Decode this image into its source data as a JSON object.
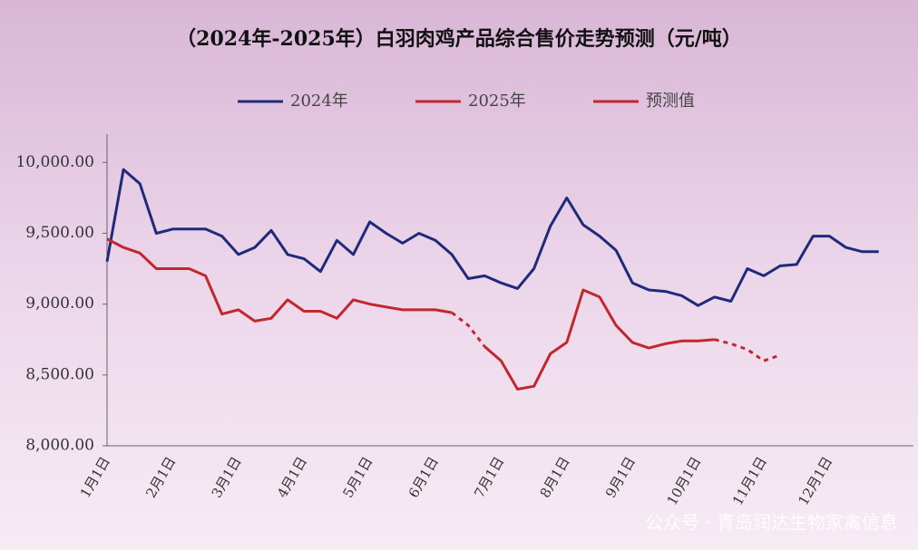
{
  "chart_data": {
    "type": "line",
    "title": "（2024年-2025年）白羽肉鸡产品综合售价走势预测（元/吨）",
    "watermark": "公众号 · 青岛润达生物家禽信息",
    "categories": [
      "1月1日",
      null,
      null,
      null,
      "2月1日",
      null,
      null,
      null,
      "3月1日",
      null,
      null,
      null,
      "4月1日",
      null,
      null,
      null,
      "5月1日",
      null,
      null,
      null,
      "6月1日",
      null,
      null,
      null,
      "7月1日",
      null,
      null,
      null,
      "8月1日",
      null,
      null,
      null,
      "9月1日",
      null,
      null,
      null,
      "10月1日",
      null,
      null,
      null,
      "11月1日",
      null,
      null,
      null,
      "12月1日",
      null,
      null,
      null
    ],
    "series": [
      {
        "name": "2024年",
        "color": "#1f2a7a",
        "dashed": false,
        "values": [
          9300,
          9950,
          9850,
          9500,
          9530,
          9530,
          9530,
          9480,
          9350,
          9400,
          9520,
          9350,
          9320,
          9230,
          9450,
          9350,
          9580,
          9500,
          9430,
          9500,
          9450,
          9350,
          9180,
          9200,
          9150,
          9110,
          9250,
          9550,
          9750,
          9560,
          9480,
          9380,
          9150,
          9100,
          9090,
          9060,
          8990,
          9050,
          9020,
          9250,
          9200,
          9270,
          9280,
          9480,
          9480,
          9400,
          9370,
          9370
        ]
      },
      {
        "name": "2025年",
        "color": "#c0282d",
        "dashed": false,
        "values": [
          9460,
          9400,
          9360,
          9250,
          9250,
          9250,
          9200,
          8930,
          8960,
          8880,
          8900,
          9030,
          8950,
          8950,
          8900,
          9030,
          9000,
          8980,
          8960,
          8960,
          8960,
          8940,
          null,
          8700,
          8600,
          8400,
          8420,
          8650,
          8730,
          9100,
          9050,
          8850,
          8730,
          8690,
          8720,
          8740,
          8740,
          8750,
          null,
          null,
          null,
          null,
          null,
          null,
          null,
          null,
          null,
          null
        ]
      },
      {
        "name": "预测值",
        "color": "#c0282d",
        "dashed": true,
        "values": [
          null,
          null,
          null,
          null,
          null,
          null,
          null,
          null,
          null,
          null,
          null,
          null,
          null,
          null,
          null,
          null,
          null,
          null,
          null,
          null,
          null,
          8940,
          8850,
          8700,
          null,
          null,
          null,
          null,
          null,
          null,
          null,
          null,
          null,
          null,
          null,
          null,
          null,
          8750,
          8720,
          8680,
          8600,
          8640,
          null,
          null,
          null,
          null,
          null,
          null
        ]
      }
    ],
    "ylim": [
      8000,
      10200
    ],
    "yticks": [
      {
        "value": 8000,
        "label": "8,000.00"
      },
      {
        "value": 8500,
        "label": "8,500.00"
      },
      {
        "value": 9000,
        "label": "9,000.00"
      },
      {
        "value": 9500,
        "label": "9,500.00"
      },
      {
        "value": 10000,
        "label": "10,000.00"
      }
    ],
    "legend": "top"
  }
}
